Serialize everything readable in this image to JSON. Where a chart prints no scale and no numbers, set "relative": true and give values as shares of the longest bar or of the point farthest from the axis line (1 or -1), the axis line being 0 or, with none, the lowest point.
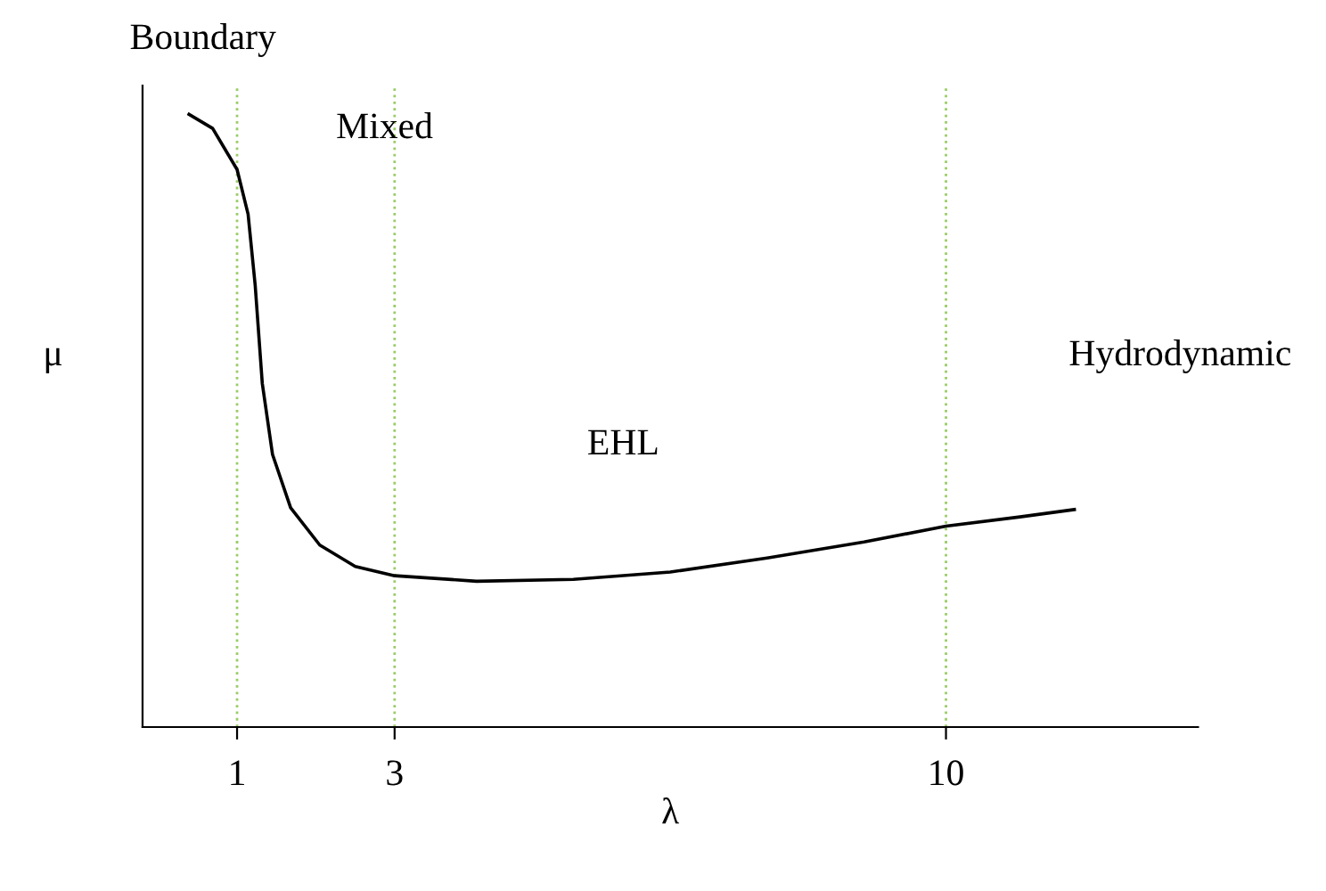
{
  "chart_data": {
    "type": "line",
    "relative": true,
    "xlabel": "λ",
    "ylabel": "μ",
    "x": [
      0.39,
      0.69,
      1,
      1.14,
      1.23,
      1.32,
      1.45,
      1.68,
      2.05,
      2.5,
      3,
      4.04,
      5.27,
      6.5,
      7.73,
      8.96,
      10,
      10.94,
      11.63
    ],
    "series": [
      {
        "color": "#000000",
        "values": [
          1,
          0.977,
          0.91,
          0.837,
          0.721,
          0.561,
          0.445,
          0.358,
          0.297,
          0.262,
          0.247,
          0.238,
          0.241,
          0.253,
          0.276,
          0.302,
          0.328,
          0.343,
          0.355
        ]
      }
    ],
    "xlim": [
      -0.2,
      13.2
    ],
    "xticks": [
      1,
      3,
      10
    ],
    "ref_lines": [
      {
        "axis": "x",
        "value": 1,
        "color": "#99cc66",
        "line_style": "dotted"
      },
      {
        "axis": "x",
        "value": 3,
        "color": "#99cc66",
        "line_style": "dotted"
      },
      {
        "axis": "x",
        "value": 10,
        "color": "#99cc66",
        "line_style": "dotted"
      }
    ],
    "annotations": [
      "Boundary",
      "Mixed",
      "EHL",
      "Hydrodynamic"
    ],
    "grid": false,
    "legend": false,
    "marker": "none",
    "line_style": "solid"
  }
}
